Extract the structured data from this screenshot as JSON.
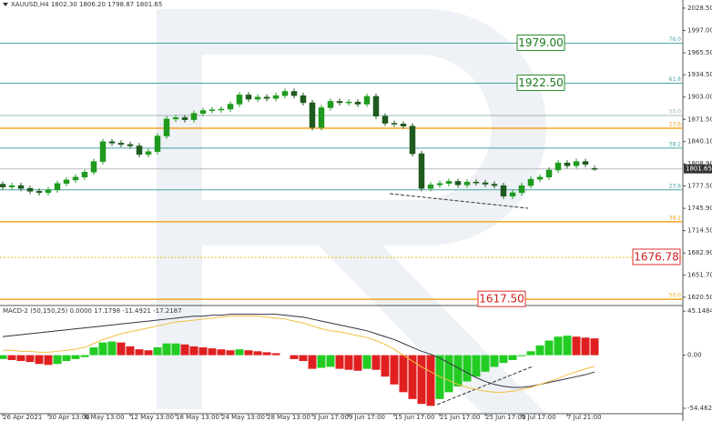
{
  "chart_data": [
    {
      "type": "candlestick",
      "title": "XAUUSD,H4 1802.30 1806.20 1798.87 1801.65",
      "categories": [
        "26 Apr 2021",
        null,
        null,
        null,
        null,
        "30 Apr 13:00",
        null,
        null,
        null,
        "6 May 13:00",
        null,
        null,
        null,
        null,
        "12 May 13:00",
        null,
        null,
        null,
        null,
        "18 May 13:00",
        null,
        null,
        null,
        null,
        "24 May 13:00",
        null,
        null,
        null,
        null,
        "28 May 13:00",
        null,
        null,
        null,
        null,
        "3 Jun 17:00",
        null,
        null,
        null,
        "9 Jun 17:00",
        null,
        null,
        null,
        null,
        "15 Jun 17:00",
        null,
        null,
        null,
        null,
        "21 Jun 17:00",
        null,
        null,
        null,
        null,
        "25 Jun 17:00",
        null,
        null,
        null,
        "1 Jul 17:00",
        null,
        null,
        null,
        null,
        "7 Jul 21:00",
        null,
        null,
        null
      ],
      "open": [
        1780,
        1776,
        1778,
        1774,
        1770,
        1768,
        1772,
        1781,
        1786,
        1790,
        1797,
        1812,
        1840,
        1838,
        1836,
        1834,
        1822,
        1826,
        1848,
        1872,
        1874,
        1871,
        1880,
        1884,
        1885,
        1886,
        1893,
        1906,
        1900,
        1903,
        1901,
        1905,
        1911,
        1905,
        1895,
        1860,
        1888,
        1897,
        1895,
        1896,
        1893,
        1904,
        1876,
        1866,
        1865,
        1862,
        1823,
        1774,
        1779,
        1781,
        1784,
        1779,
        1783,
        1782,
        1780,
        1778,
        1763,
        1768,
        1778,
        1787,
        1790,
        1800,
        1810,
        1806,
        1812,
        1802.3
      ],
      "high": [
        1784,
        1782,
        1782,
        1778,
        1774,
        1776,
        1785,
        1790,
        1794,
        1801,
        1816,
        1844,
        1844,
        1842,
        1840,
        1838,
        1830,
        1852,
        1876,
        1878,
        1878,
        1884,
        1888,
        1889,
        1890,
        1897,
        1910,
        1910,
        1907,
        1907,
        1909,
        1915,
        1915,
        1909,
        1899,
        1892,
        1901,
        1901,
        1900,
        1900,
        1908,
        1908,
        1880,
        1870,
        1869,
        1866,
        1827,
        1783,
        1785,
        1788,
        1788,
        1787,
        1787,
        1786,
        1784,
        1782,
        1772,
        1782,
        1791,
        1794,
        1804,
        1814,
        1814,
        1816,
        1816,
        1806.2
      ],
      "low": [
        1772,
        1772,
        1770,
        1766,
        1764,
        1764,
        1768,
        1777,
        1782,
        1786,
        1793,
        1808,
        1834,
        1832,
        1830,
        1818,
        1818,
        1822,
        1844,
        1868,
        1867,
        1867,
        1876,
        1880,
        1881,
        1882,
        1889,
        1896,
        1896,
        1897,
        1897,
        1901,
        1901,
        1891,
        1856,
        1856,
        1884,
        1891,
        1891,
        1889,
        1889,
        1872,
        1862,
        1861,
        1858,
        1819,
        1770,
        1770,
        1775,
        1777,
        1775,
        1775,
        1778,
        1776,
        1774,
        1759,
        1759,
        1764,
        1774,
        1783,
        1786,
        1796,
        1802,
        1802,
        1804,
        1798.87
      ],
      "close": [
        1776,
        1778,
        1774,
        1770,
        1768,
        1772,
        1781,
        1786,
        1790,
        1797,
        1812,
        1840,
        1838,
        1836,
        1834,
        1822,
        1826,
        1848,
        1872,
        1874,
        1871,
        1880,
        1884,
        1885,
        1886,
        1893,
        1906,
        1900,
        1903,
        1901,
        1905,
        1911,
        1905,
        1895,
        1860,
        1888,
        1897,
        1895,
        1896,
        1893,
        1904,
        1876,
        1866,
        1865,
        1862,
        1823,
        1774,
        1779,
        1781,
        1784,
        1779,
        1783,
        1782,
        1780,
        1778,
        1763,
        1768,
        1778,
        1787,
        1790,
        1800,
        1810,
        1806,
        1812,
        1808,
        1801.65
      ],
      "up_color": "#1f9a1f",
      "down_color": "#1f5a1f",
      "ylim": [
        1610,
        2040
      ],
      "yticks": [
        {
          "value": 2028.5,
          "label": "2028.50"
        },
        {
          "value": 1997,
          "label": "1997.00"
        },
        {
          "value": 1965.5,
          "label": "1965.50"
        },
        {
          "value": 1934.5,
          "label": "1934.50"
        },
        {
          "value": 1903,
          "label": "1903.00"
        },
        {
          "value": 1871.5,
          "label": "1871.50"
        },
        {
          "value": 1840.1,
          "label": "1840.10"
        },
        {
          "value": 1808.9,
          "label": "1808.90"
        },
        {
          "value": 1777.5,
          "label": "1777.50"
        },
        {
          "value": 1745.9,
          "label": "1745.90"
        },
        {
          "value": 1714.5,
          "label": "1714.50"
        },
        {
          "value": 1682.9,
          "label": "1682.90"
        },
        {
          "value": 1651.7,
          "label": "1651.70"
        },
        {
          "value": 1620.5,
          "label": "1620.50"
        }
      ],
      "levels": [
        {
          "value": 1979,
          "label": "76.0",
          "price_label": "1979.00",
          "color": "#4aa3a3"
        },
        {
          "value": 1922.5,
          "label": "61.8",
          "price_label": "1922.50",
          "color": "#4aa3a3"
        },
        {
          "value": 1877,
          "label": "50.0",
          "color": "#9fb8b8"
        },
        {
          "value": 1831,
          "label": "38.2",
          "color": "#4aa3a3"
        },
        {
          "value": 1772,
          "label": "23.6",
          "color": "#4aa3a3"
        },
        {
          "value": 1859,
          "label": "23.6",
          "color": "#f5a623"
        },
        {
          "value": 1727,
          "label": "38.2",
          "color": "#f5a623"
        },
        {
          "value": 1676.78,
          "label": "61.8",
          "price_label": "1676.78",
          "color": "#e0c020",
          "dashed": true
        },
        {
          "value": 1617.5,
          "label": "50.0",
          "price_label": "1617.50",
          "color": "#f5a623"
        }
      ],
      "last_price_label": "1801.65"
    },
    {
      "type": "macd",
      "title": "MACD-2 (50,150,25) 0.0000 17.1798 -11.4921 -17.2187",
      "histogram": [
        -4,
        -5,
        -6,
        -7,
        -9,
        -10,
        -9,
        -6,
        -4,
        -2,
        8,
        13,
        14,
        13,
        9,
        6,
        5,
        8,
        12,
        12,
        11,
        9,
        8,
        7,
        6,
        5,
        6,
        5,
        4,
        3,
        2,
        0,
        -4,
        -6,
        -14,
        -13,
        -12,
        -14,
        -15,
        -16,
        -14,
        -15,
        -22,
        -30,
        -38,
        -45,
        -50,
        -52,
        -45,
        -38,
        -32,
        -27,
        -22,
        -17,
        -12,
        -8,
        -5,
        -1,
        4,
        10,
        15,
        19,
        20,
        19,
        18,
        17.2
      ],
      "macd": [
        19,
        20,
        21,
        22,
        23,
        24,
        25,
        26,
        27,
        28,
        29,
        30,
        31,
        32,
        33,
        34,
        35,
        36,
        37,
        38,
        39,
        40,
        40,
        41,
        41,
        42,
        42,
        42,
        42,
        42,
        42,
        41,
        40,
        39,
        37,
        35,
        33,
        31,
        29,
        27,
        25,
        22,
        19,
        16,
        12,
        8,
        4,
        1,
        -3,
        -8,
        -13,
        -18,
        -23,
        -27,
        -30,
        -32,
        -33,
        -33,
        -32,
        -30,
        -28,
        -26,
        -24,
        -22,
        -20,
        -17.22
      ],
      "signal": [
        5,
        5,
        4,
        4,
        3,
        3,
        4,
        5,
        6,
        8,
        12,
        16,
        19,
        22,
        24,
        26,
        28,
        30,
        32,
        34,
        35,
        36,
        37,
        38,
        39,
        40,
        40,
        40,
        40,
        39,
        38,
        37,
        35,
        33,
        30,
        27,
        25,
        24,
        22,
        20,
        18,
        15,
        11,
        6,
        0,
        -6,
        -12,
        -17,
        -22,
        -26,
        -30,
        -33,
        -35,
        -37,
        -38,
        -38,
        -37,
        -35,
        -33,
        -30,
        -27,
        -24,
        -20,
        -17,
        -14,
        -11.49
      ],
      "up_color": "#22cc22",
      "down_color": "#e02020",
      "macd_color": "#333344",
      "signal_color": "#f0c040",
      "ylim": [
        -61,
        50
      ],
      "yticks": [
        {
          "value": 45.1484,
          "label": "45.1484"
        },
        {
          "value": 0,
          "label": "0.00"
        },
        {
          "value": -54.4628,
          "label": "-54.4628"
        }
      ]
    }
  ]
}
